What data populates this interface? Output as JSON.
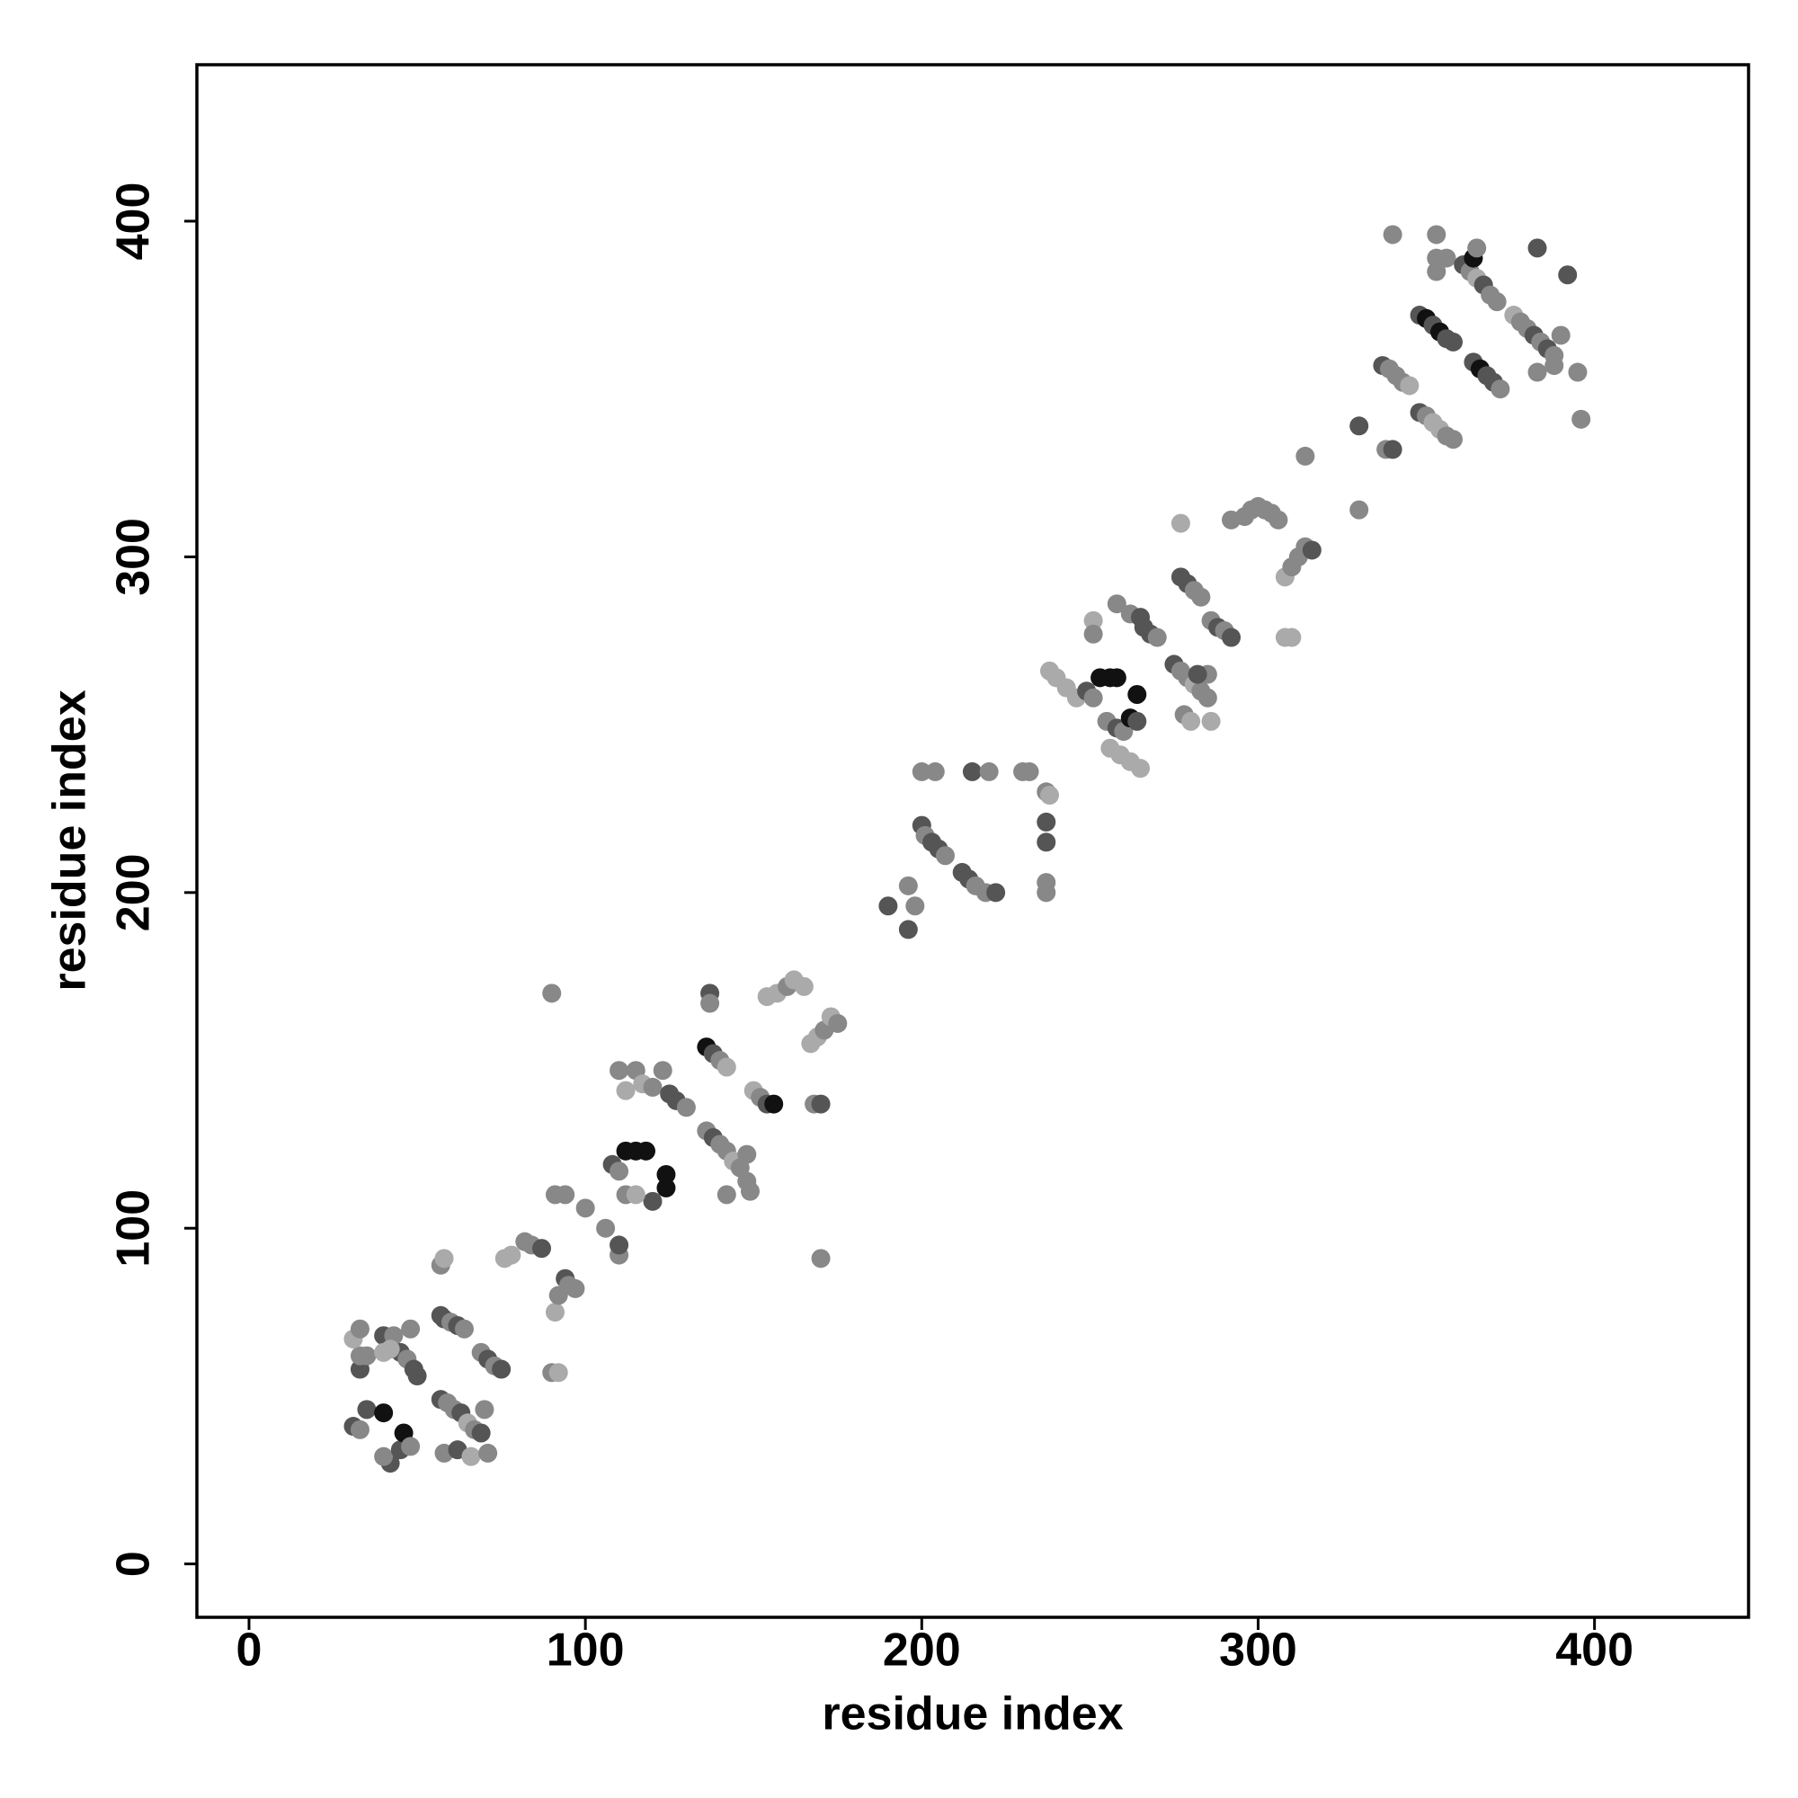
{
  "chart_data": {
    "type": "scatter",
    "xlabel": "residue index",
    "ylabel": "residue index",
    "xlim": [
      -15.5,
      445.8
    ],
    "ylim": [
      -15.9,
      446.6
    ],
    "xticks": [
      0,
      100,
      200,
      300,
      400
    ],
    "yticks": [
      0,
      100,
      200,
      300,
      400
    ],
    "x": [
      31,
      33,
      35,
      40,
      42,
      40,
      45,
      46,
      48,
      33,
      33,
      31,
      33,
      35,
      40,
      40,
      43,
      45,
      47,
      49,
      50,
      48,
      42,
      57,
      58,
      60,
      62,
      64,
      57,
      58,
      57,
      59,
      61,
      63,
      65,
      67,
      69,
      70,
      58,
      62,
      66,
      71,
      69,
      71,
      73,
      75,
      76,
      78,
      82,
      84,
      87,
      90,
      92,
      91,
      92,
      94,
      95,
      97,
      91,
      94,
      90,
      100,
      106,
      110,
      110,
      108,
      110,
      112,
      115,
      118,
      120,
      124,
      124,
      110,
      112,
      115,
      117,
      120,
      123,
      125,
      127,
      130,
      112,
      115,
      137,
      137,
      136,
      138,
      140,
      142,
      136,
      138,
      140,
      142,
      144,
      146,
      148,
      149,
      142,
      148,
      150,
      152,
      154,
      156,
      154,
      157,
      160,
      162,
      165,
      167,
      169,
      171,
      173,
      175,
      168,
      170,
      170,
      190,
      196,
      196,
      198,
      200,
      201,
      203,
      205,
      207,
      200,
      204,
      212,
      214,
      216,
      219,
      222,
      215,
      220,
      230,
      232,
      237,
      238,
      237,
      237,
      237,
      237,
      238,
      240,
      243,
      246,
      249,
      251,
      251,
      251,
      253,
      256,
      258,
      255,
      258,
      260,
      262,
      264,
      264,
      258,
      262,
      265,
      266,
      268,
      270,
      256,
      259,
      262,
      265,
      275,
      277,
      279,
      281,
      283,
      285,
      285,
      282,
      278,
      280,
      286,
      277,
      279,
      281,
      283,
      286,
      288,
      290,
      292,
      277,
      292,
      296,
      298,
      300,
      302,
      304,
      306,
      308,
      310,
      308,
      310,
      312,
      314,
      316,
      314,
      330,
      330,
      337,
      339,
      341,
      343,
      345,
      338,
      340,
      340,
      348,
      350,
      352,
      354,
      356,
      358,
      348,
      350,
      352,
      354,
      356,
      358,
      353,
      353,
      353,
      356,
      361,
      363,
      365,
      367,
      369,
      371,
      364,
      365,
      364,
      366,
      368,
      370,
      372,
      376,
      378,
      380,
      382,
      384,
      386,
      388,
      383,
      390,
      383,
      388,
      392,
      395,
      396
    ],
    "y": [
      41,
      40,
      46,
      45,
      30,
      32,
      34,
      39,
      35,
      58,
      62,
      67,
      70,
      62,
      68,
      63,
      68,
      63,
      61,
      58,
      56,
      70,
      64,
      74,
      73,
      72,
      71,
      70,
      89,
      91,
      49,
      48,
      46,
      45,
      42,
      40,
      39,
      46,
      33,
      34,
      32,
      33,
      63,
      61,
      59,
      58,
      91,
      92,
      96,
      95,
      94,
      57,
      57,
      75,
      80,
      85,
      83,
      82,
      110,
      110,
      170,
      106,
      100,
      92,
      95,
      119,
      117,
      123,
      123,
      123,
      108,
      112,
      116,
      147,
      141,
      147,
      143,
      142,
      147,
      140,
      138,
      136,
      110,
      110,
      170,
      167,
      154,
      152,
      150,
      148,
      129,
      127,
      125,
      123,
      120,
      118,
      114,
      111,
      110,
      122,
      141,
      139,
      137,
      137,
      169,
      170,
      172,
      174,
      172,
      155,
      157,
      159,
      163,
      161,
      137,
      137,
      91,
      196,
      189,
      202,
      196,
      220,
      217,
      215,
      213,
      211,
      236,
      236,
      206,
      204,
      202,
      200,
      200,
      236,
      236,
      236,
      236,
      230,
      229,
      221,
      215,
      203,
      200,
      266,
      264,
      261,
      258,
      260,
      258,
      281,
      277,
      264,
      264,
      264,
      251,
      249,
      248,
      252,
      251,
      259,
      286,
      283,
      282,
      279,
      277,
      276,
      243,
      241,
      239,
      237,
      268,
      266,
      264,
      262,
      260,
      258,
      265,
      265,
      253,
      251,
      251,
      294,
      292,
      290,
      288,
      281,
      279,
      278,
      276,
      310,
      311,
      312,
      314,
      315,
      314,
      313,
      311,
      276,
      276,
      294,
      297,
      300,
      303,
      302,
      330,
      314,
      339,
      357,
      356,
      354,
      352,
      351,
      332,
      332,
      396,
      372,
      371,
      369,
      367,
      365,
      364,
      343,
      342,
      340,
      338,
      336,
      335,
      396,
      385,
      389,
      389,
      387,
      385,
      383,
      381,
      378,
      376,
      389,
      392,
      358,
      356,
      354,
      352,
      350,
      372,
      370,
      368,
      366,
      364,
      362,
      360,
      392,
      366,
      355,
      357,
      384,
      355,
      341
    ],
    "colors": [
      "#555",
      "#888",
      "#555",
      "#111",
      "#555",
      "#888",
      "#555",
      "#111",
      "#888",
      "#555",
      "#888",
      "#aaa",
      "#888",
      "#888",
      "#555",
      "#aaa",
      "#888",
      "#555",
      "#888",
      "#555",
      "#555",
      "#888",
      "#aaa",
      "#555",
      "#555",
      "#888",
      "#555",
      "#888",
      "#888",
      "#aaa",
      "#555",
      "#888",
      "#888",
      "#555",
      "#aaa",
      "#888",
      "#555",
      "#888",
      "#888",
      "#555",
      "#aaa",
      "#888",
      "#888",
      "#555",
      "#888",
      "#555",
      "#aaa",
      "#aaa",
      "#888",
      "#888",
      "#555",
      "#888",
      "#aaa",
      "#aaa",
      "#888",
      "#555",
      "#888",
      "#888",
      "#888",
      "#888",
      "#888",
      "#888",
      "#888",
      "#888",
      "#555",
      "#555",
      "#888",
      "#111",
      "#111",
      "#111",
      "#555",
      "#111",
      "#111",
      "#888",
      "#aaa",
      "#888",
      "#aaa",
      "#888",
      "#888",
      "#555",
      "#555",
      "#888",
      "#888",
      "#aaa",
      "#555",
      "#888",
      "#111",
      "#555",
      "#888",
      "#aaa",
      "#888",
      "#555",
      "#888",
      "#888",
      "#aaa",
      "#888",
      "#888",
      "#888",
      "#888",
      "#888",
      "#aaa",
      "#888",
      "#555",
      "#111",
      "#aaa",
      "#aaa",
      "#888",
      "#aaa",
      "#aaa",
      "#aaa",
      "#aaa",
      "#888",
      "#aaa",
      "#888",
      "#888",
      "#555",
      "#888",
      "#555",
      "#555",
      "#888",
      "#888",
      "#555",
      "#888",
      "#555",
      "#555",
      "#888",
      "#888",
      "#888",
      "#555",
      "#555",
      "#888",
      "#888",
      "#555",
      "#555",
      "#888",
      "#888",
      "#888",
      "#888",
      "#aaa",
      "#555",
      "#555",
      "#888",
      "#888",
      "#aaa",
      "#aaa",
      "#aaa",
      "#aaa",
      "#555",
      "#888",
      "#aaa",
      "#888",
      "#111",
      "#111",
      "#111",
      "#888",
      "#555",
      "#888",
      "#111",
      "#555",
      "#111",
      "#888",
      "#888",
      "#555",
      "#555",
      "#555",
      "#888",
      "#aaa",
      "#aaa",
      "#aaa",
      "#aaa",
      "#555",
      "#888",
      "#888",
      "#aaa",
      "#888",
      "#888",
      "#888",
      "#555",
      "#888",
      "#aaa",
      "#aaa",
      "#555",
      "#555",
      "#888",
      "#888",
      "#888",
      "#555",
      "#888",
      "#555",
      "#aaa",
      "#888",
      "#888",
      "#888",
      "#888",
      "#888",
      "#888",
      "#888",
      "#aaa",
      "#aaa",
      "#aaa",
      "#888",
      "#888",
      "#888",
      "#555",
      "#888",
      "#888",
      "#555",
      "#555",
      "#888",
      "#888",
      "#888",
      "#aaa",
      "#888",
      "#555",
      "#888",
      "#555",
      "#111",
      "#555",
      "#111",
      "#555",
      "#555",
      "#555",
      "#888",
      "#aaa",
      "#aaa",
      "#888",
      "#888",
      "#888",
      "#888",
      "#888",
      "#888",
      "#555",
      "#888",
      "#aaa",
      "#555",
      "#888",
      "#888",
      "#111",
      "#888",
      "#555",
      "#111",
      "#555",
      "#555",
      "#888",
      "#aaa",
      "#888",
      "#888",
      "#555",
      "#888",
      "#555",
      "#888",
      "#555",
      "#888",
      "#888",
      "#888",
      "#555",
      "#888",
      "#888"
    ]
  }
}
